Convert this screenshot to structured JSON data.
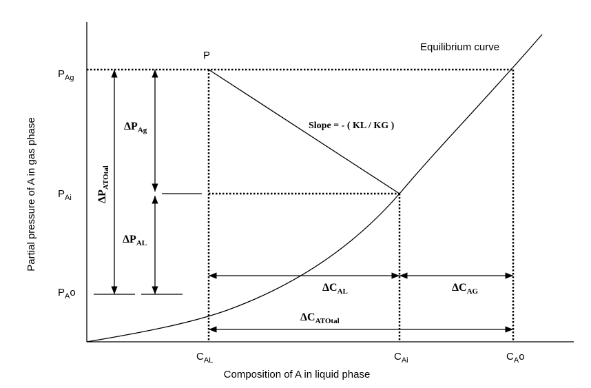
{
  "labels": {
    "point": "P",
    "equilibrium_curve": "Equilibrium curve",
    "slope": "Slope = - ( KL / KG )"
  },
  "axes": {
    "x_title": "Composition of A in liquid phase",
    "y_title": "Partial pressure of A in gas phase"
  },
  "y_labels": [
    {
      "base": "P",
      "sub": "Ag"
    },
    {
      "base": "P",
      "sub": "Ai"
    },
    {
      "base": "P",
      "sub": "A",
      "sup": "o"
    }
  ],
  "x_labels": [
    {
      "base": "C",
      "sub": "AL"
    },
    {
      "base": "C",
      "sub": "Ai"
    },
    {
      "base": "C",
      "sub": "A",
      "sup": "o"
    }
  ],
  "deltas": {
    "dp_ag": {
      "base": "ΔP",
      "sub": "Ag"
    },
    "dp_total": {
      "base": "ΔP",
      "sub": "ATOtal"
    },
    "dp_al": {
      "base": "ΔP",
      "sub": "AL"
    },
    "dc_al": {
      "base": "ΔC",
      "sub": "AL"
    },
    "dc_ag": {
      "base": "ΔC",
      "sub": "AG"
    },
    "dc_total": {
      "base": "ΔC",
      "sub": "ATOtal"
    }
  }
}
